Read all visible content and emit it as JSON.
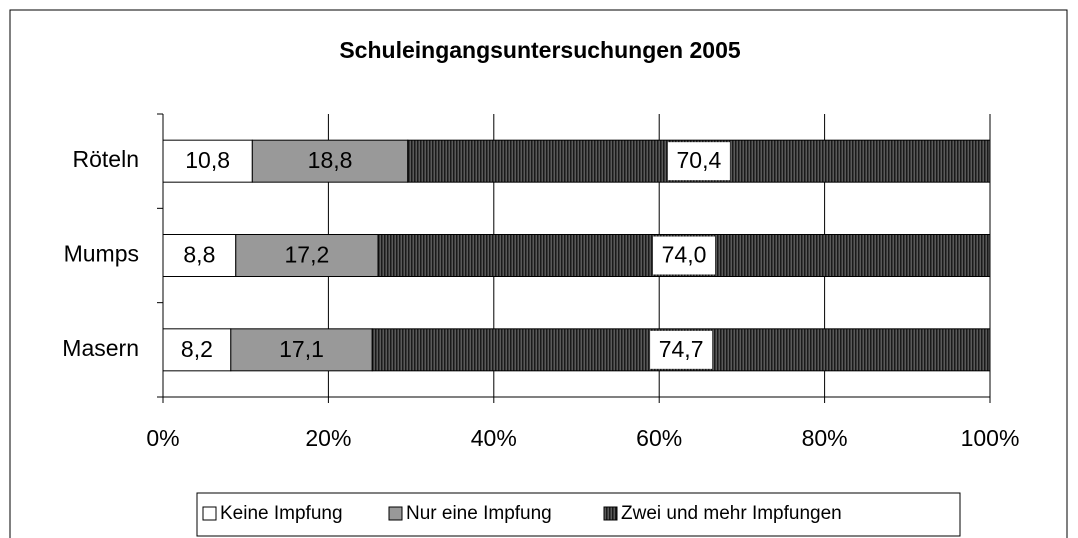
{
  "chart_data": {
    "type": "stacked_barh",
    "title": "Schuleingangsuntersuchungen 2005",
    "categories": [
      "Röteln",
      "Mumps",
      "Masern"
    ],
    "series": [
      {
        "name": "Keine Impfung",
        "color": "#ffffff",
        "values": [
          10.8,
          8.8,
          8.2
        ],
        "value_labels": [
          "10,8",
          "8,8",
          "8,2"
        ]
      },
      {
        "name": "Nur eine Impfung",
        "color": "#999999",
        "values": [
          18.8,
          17.2,
          17.1
        ],
        "value_labels": [
          "18,8",
          "17,2",
          "17,1"
        ]
      },
      {
        "name": "Zwei und mehr Impfungen",
        "color": "#3a3a3a",
        "values": [
          70.4,
          74.0,
          74.7
        ],
        "value_labels": [
          "70,4",
          "74,0",
          "74,7"
        ]
      }
    ],
    "xlim": [
      0,
      100
    ],
    "xticks": [
      {
        "value": 0,
        "label": "0%"
      },
      {
        "value": 20,
        "label": "20%"
      },
      {
        "value": 40,
        "label": "40%"
      },
      {
        "value": 60,
        "label": "60%"
      },
      {
        "value": 80,
        "label": "80%"
      },
      {
        "value": 100,
        "label": "100%"
      }
    ],
    "grid": true,
    "legend": "bottom"
  }
}
